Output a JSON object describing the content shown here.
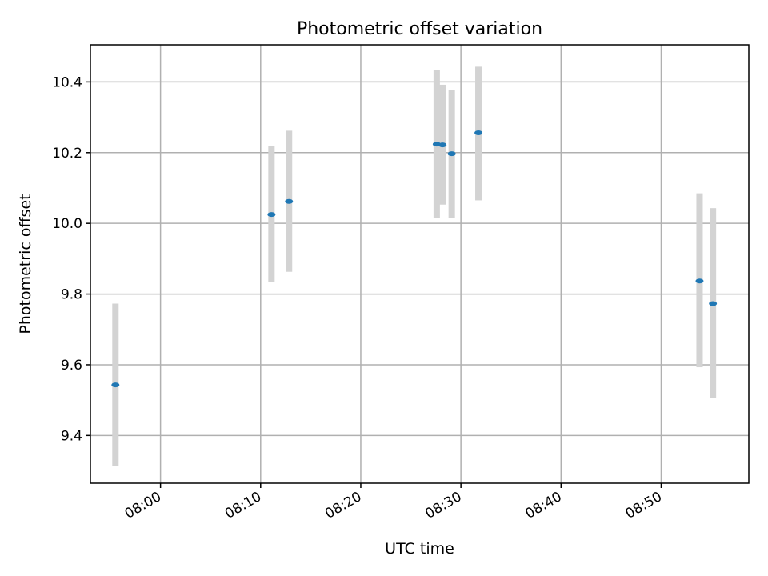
{
  "chart_data": {
    "type": "scatter",
    "title": "Photometric offset variation",
    "xlabel": "UTC time",
    "ylabel": "Photometric offset",
    "grid": true,
    "xlim": [
      "07:53:00",
      "08:58:45"
    ],
    "ylim": [
      9.265,
      10.505
    ],
    "xticks": [
      "08:00",
      "08:10",
      "08:20",
      "08:30",
      "08:40",
      "08:50"
    ],
    "yticks": [
      9.4,
      9.6,
      9.8,
      10.0,
      10.2,
      10.4
    ],
    "ytick_labels": [
      "9.4",
      "9.6",
      "9.8",
      "10.0",
      "10.2",
      "10.4"
    ],
    "colors": {
      "marker": "#1f77b4",
      "errorbar": "#d3d3d3"
    },
    "points": [
      {
        "x": "07:55:30",
        "y": 9.543,
        "yerr_low": 9.313,
        "yerr_high": 9.773
      },
      {
        "x": "08:11:05",
        "y": 10.025,
        "yerr_low": 9.835,
        "yerr_high": 10.218
      },
      {
        "x": "08:12:50",
        "y": 10.062,
        "yerr_low": 9.863,
        "yerr_high": 10.262
      },
      {
        "x": "08:27:35",
        "y": 10.224,
        "yerr_low": 10.015,
        "yerr_high": 10.433
      },
      {
        "x": "08:28:10",
        "y": 10.222,
        "yerr_low": 10.053,
        "yerr_high": 10.392
      },
      {
        "x": "08:29:05",
        "y": 10.197,
        "yerr_low": 10.015,
        "yerr_high": 10.377
      },
      {
        "x": "08:31:45",
        "y": 10.256,
        "yerr_low": 10.065,
        "yerr_high": 10.443
      },
      {
        "x": "08:53:50",
        "y": 9.837,
        "yerr_low": 9.593,
        "yerr_high": 10.085
      },
      {
        "x": "08:55:10",
        "y": 9.773,
        "yerr_low": 9.505,
        "yerr_high": 10.043
      }
    ]
  }
}
